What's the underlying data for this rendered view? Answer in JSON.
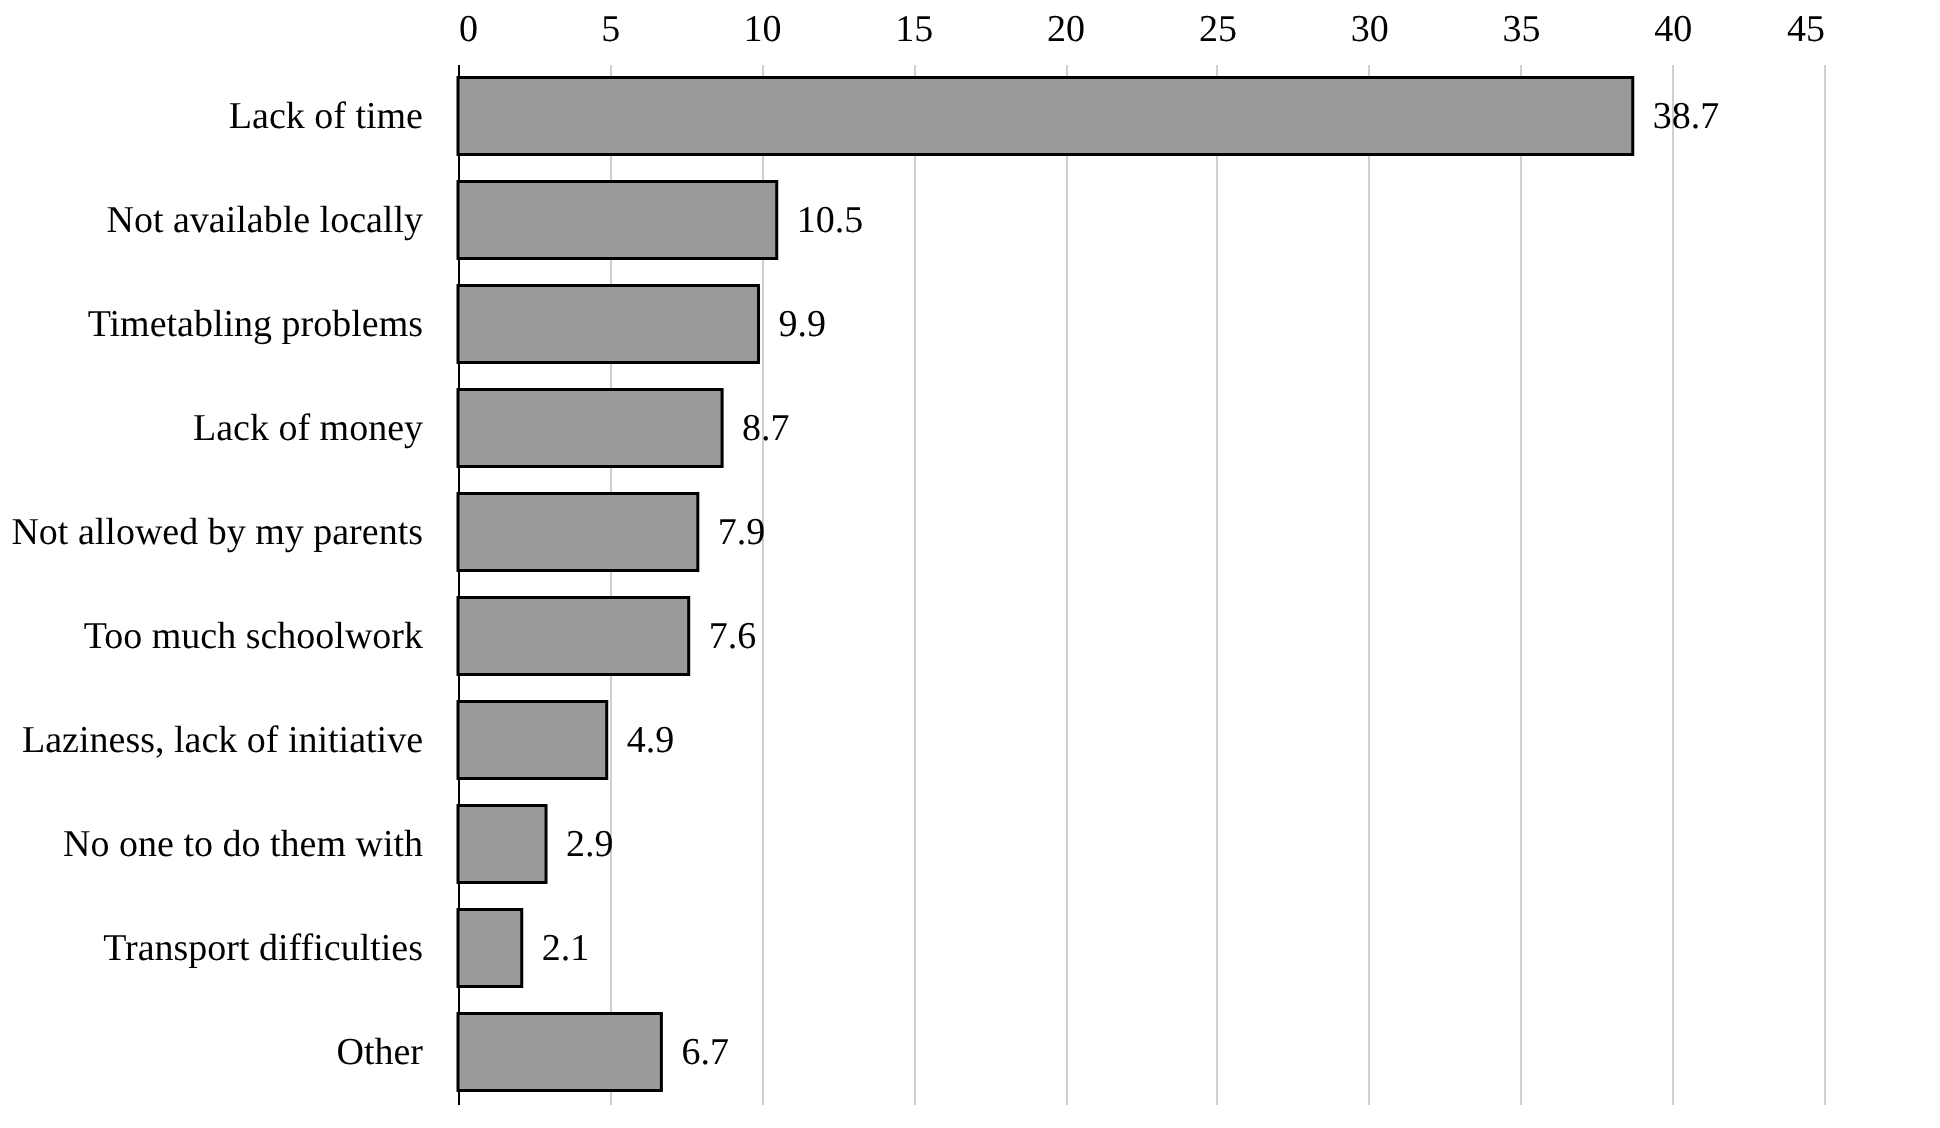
{
  "chart_data": {
    "type": "bar",
    "orientation": "horizontal",
    "categories": [
      "Lack of time",
      "Not available locally",
      "Timetabling problems",
      "Lack of money",
      "Not allowed by my parents",
      "Too much schoolwork",
      "Laziness, lack of initiative",
      "No one to do them with",
      "Transport difficulties",
      "Other"
    ],
    "values": [
      38.7,
      10.5,
      9.9,
      8.7,
      7.9,
      7.6,
      4.9,
      2.9,
      2.1,
      6.7
    ],
    "color": "#9a9a9a",
    "xlim": [
      0,
      45
    ],
    "xticks": [
      0,
      5,
      10,
      15,
      20,
      25,
      30,
      35,
      40,
      45
    ],
    "grid": "x",
    "data_labels": true
  }
}
